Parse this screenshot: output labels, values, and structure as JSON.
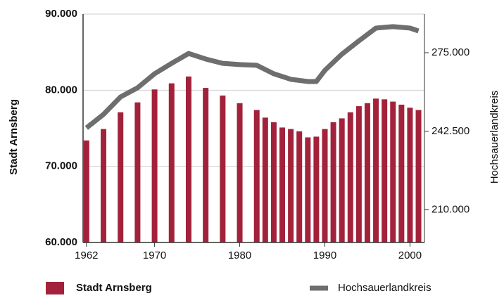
{
  "chart_data": {
    "type": "combo",
    "y_label": "Stadt Arnsberg",
    "y2_label": "Hochsauerlandkreis",
    "xlim": [
      1961.6,
      2001.7
    ],
    "xticks": [
      1962,
      1970,
      1980,
      1990,
      2000
    ],
    "ylim": [
      60000,
      90000
    ],
    "yticks": [
      {
        "value": 60000,
        "label": "60.000"
      },
      {
        "value": 70000,
        "label": "70.000"
      },
      {
        "value": 80000,
        "label": "80.000"
      },
      {
        "value": 90000,
        "label": "90.000"
      }
    ],
    "y2lim": [
      196500,
      291000
    ],
    "y2ticks": [
      {
        "value": 210000,
        "label": "210.000"
      },
      {
        "value": 242500,
        "label": "242.500"
      },
      {
        "value": 275000,
        "label": "275.000"
      }
    ],
    "grid": true,
    "series": [
      {
        "name": "Stadt Arnsberg",
        "type": "bar",
        "color": "#a3223b",
        "x": [
          1962,
          1964,
          1966,
          1968,
          1970,
          1972,
          1974,
          1976,
          1978,
          1980,
          1982,
          1983,
          1984,
          1985,
          1986,
          1987,
          1988,
          1989,
          1990,
          1991,
          1992,
          1993,
          1994,
          1995,
          1996,
          1997,
          1998,
          1999,
          2000,
          2001
        ],
        "values": [
          73400,
          74900,
          77100,
          78400,
          80100,
          80900,
          81800,
          80300,
          79300,
          78300,
          77400,
          76400,
          75800,
          75100,
          74900,
          74600,
          73800,
          73900,
          74900,
          75800,
          76300,
          77100,
          77900,
          78300,
          78900,
          78800,
          78500,
          78100,
          77700,
          77400
        ]
      },
      {
        "name": "Hochsauerlandkreis",
        "type": "line",
        "axis": "y2",
        "color": "#6e6e6e",
        "x": [
          1962,
          1964,
          1966,
          1968,
          1970,
          1972,
          1974,
          1976,
          1978,
          1980,
          1982,
          1984,
          1986,
          1988,
          1989,
          1990,
          1992,
          1994,
          1996,
          1998,
          2000,
          2001
        ],
        "values": [
          243900,
          249500,
          256700,
          260500,
          266300,
          270600,
          274700,
          272400,
          270600,
          270100,
          269800,
          266300,
          264000,
          263100,
          263100,
          267700,
          274400,
          279900,
          285200,
          285800,
          285200,
          284000
        ]
      }
    ]
  }
}
